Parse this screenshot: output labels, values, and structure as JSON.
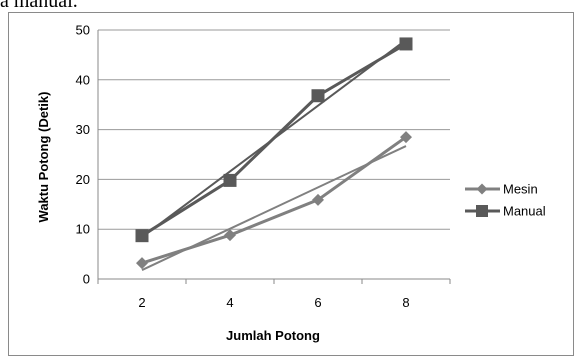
{
  "page_fragment": "a manual.",
  "chart_data": {
    "type": "line",
    "title": "",
    "xlabel": "Jumlah Potong",
    "ylabel": "Waktu Potong (Detik)",
    "categories": [
      "2",
      "4",
      "6",
      "8"
    ],
    "ylim": [
      0,
      50
    ],
    "yticks": [
      "0",
      "10",
      "20",
      "30",
      "40",
      "50"
    ],
    "grid": true,
    "legend_position": "right",
    "series": [
      {
        "name": "Mesin",
        "values": [
          3.2,
          8.8,
          15.9,
          28.5
        ],
        "marker": "diamond",
        "color": "#808080",
        "trendline": [
          1.8,
          10.1,
          18.4,
          26.7
        ]
      },
      {
        "name": "Manual",
        "values": [
          8.7,
          19.8,
          36.8,
          47.2
        ],
        "marker": "square",
        "color": "#595959",
        "trendline": [
          8.4,
          21.6,
          34.8,
          48.0
        ]
      }
    ]
  }
}
